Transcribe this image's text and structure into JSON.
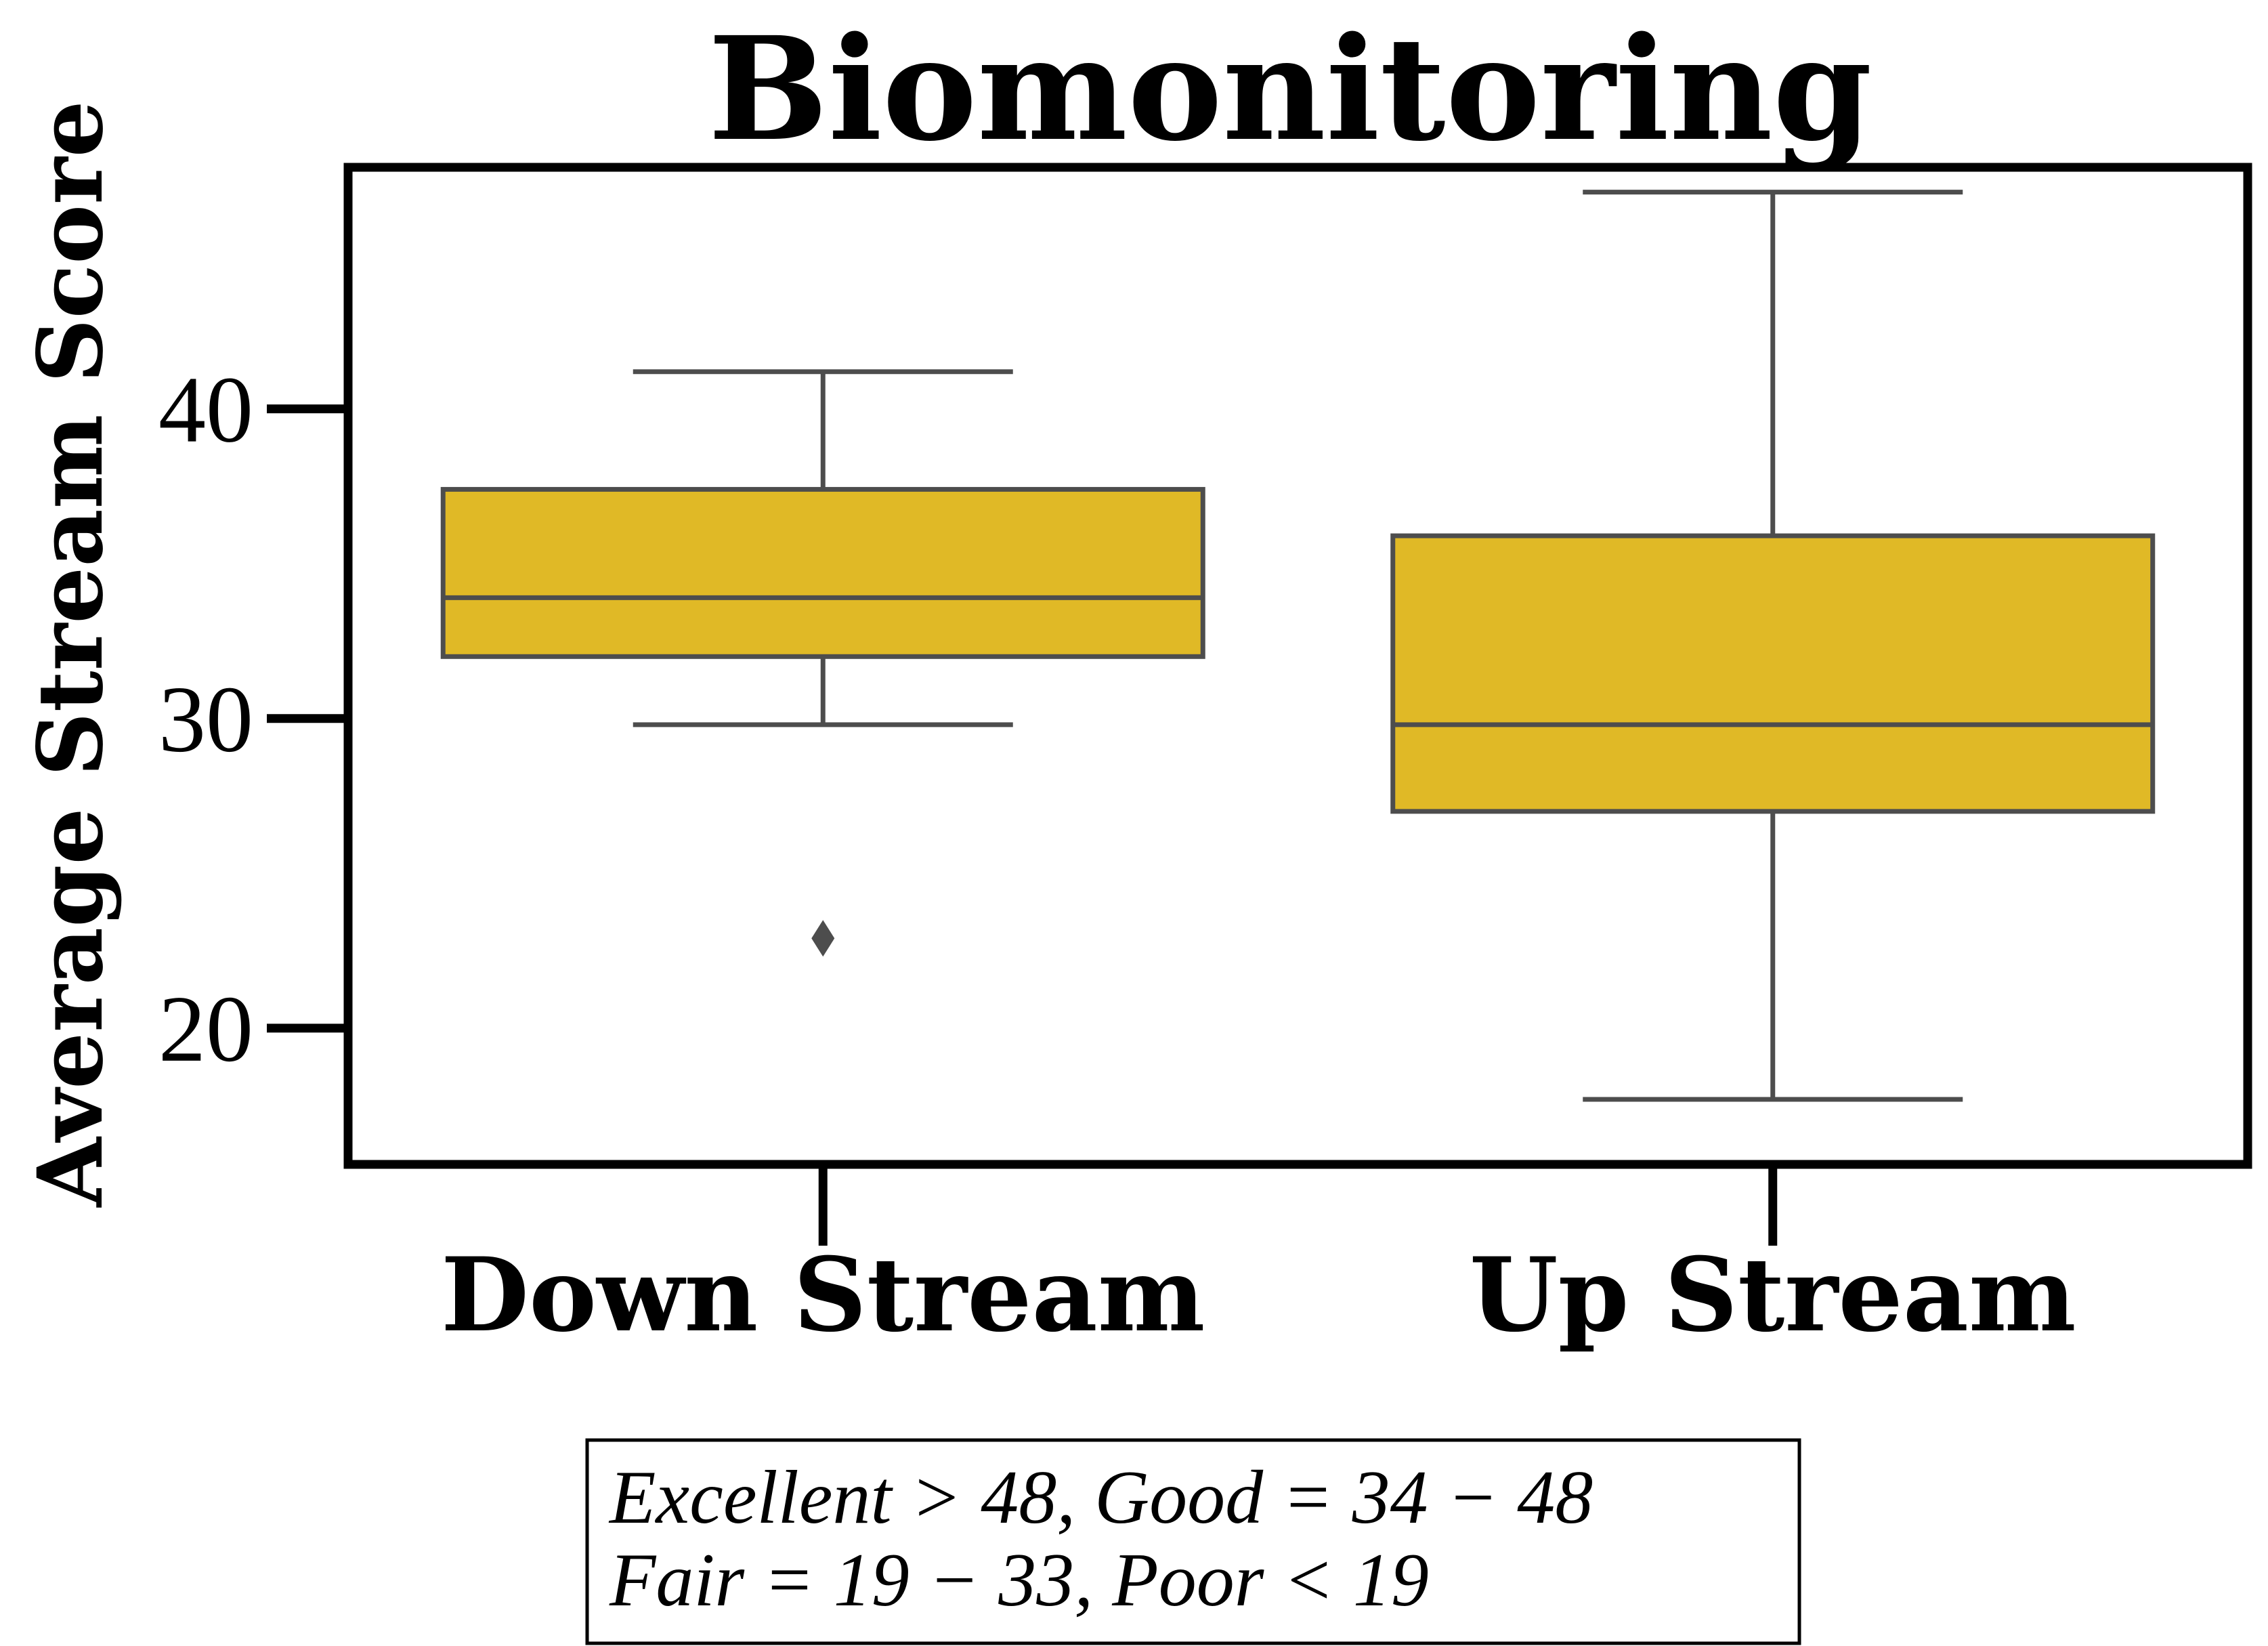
{
  "chart_data": {
    "type": "box",
    "title": "Biomonitoring",
    "xlabel": "",
    "ylabel": "Average Stream Score",
    "categories": [
      "Down Stream",
      "Up Stream"
    ],
    "ylim": [
      15.6,
      47.8
    ],
    "yticks": [
      "20",
      "30",
      "40"
    ],
    "ytick_values": [
      20,
      30,
      40
    ],
    "grid": false,
    "series": [
      {
        "category": "Down Stream",
        "whisker_low": 29.8,
        "q1": 32.0,
        "median": 33.9,
        "q3": 37.4,
        "whisker_high": 41.2,
        "outliers": [
          22.9
        ]
      },
      {
        "category": "Up Stream",
        "whisker_low": 17.7,
        "q1": 27.0,
        "median": 29.8,
        "q3": 35.9,
        "whisker_high": 47.0,
        "outliers": []
      }
    ],
    "colors": {
      "box_fill": "#E0B926",
      "box_edge": "#4D4D4D",
      "axes": "#000000"
    }
  },
  "annotation": {
    "lines": [
      "Excellent > 48, Good = 34 − 48",
      "Fair = 19 − 33, Poor < 19"
    ]
  }
}
